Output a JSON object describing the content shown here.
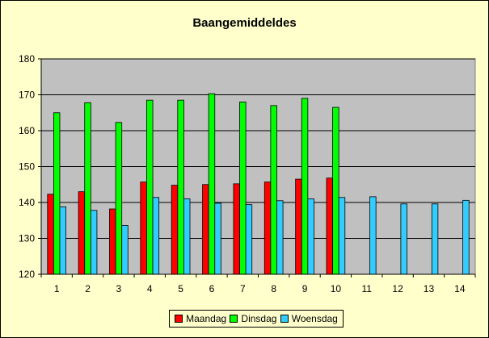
{
  "chart_data": {
    "type": "bar",
    "title": "Baangemiddeldes",
    "xlabel": "",
    "ylabel": "",
    "categories": [
      "1",
      "2",
      "3",
      "4",
      "5",
      "6",
      "7",
      "8",
      "9",
      "10",
      "11",
      "12",
      "13",
      "14"
    ],
    "ylim": [
      120,
      180
    ],
    "yticks": [
      120,
      130,
      140,
      150,
      160,
      170,
      180
    ],
    "grid": true,
    "legend_position": "bottom",
    "series": [
      {
        "name": "Maandag",
        "color": "#ff0000",
        "values": [
          142.3,
          143.0,
          138.2,
          145.7,
          144.8,
          145.0,
          145.2,
          145.7,
          146.5,
          146.8,
          null,
          null,
          null,
          null
        ]
      },
      {
        "name": "Dinsdag",
        "color": "#00ff00",
        "values": [
          165.0,
          167.8,
          162.3,
          168.5,
          168.5,
          170.3,
          168.0,
          167.0,
          169.0,
          166.5,
          null,
          null,
          null,
          null
        ]
      },
      {
        "name": "Woensdag",
        "color": "#33ccff",
        "values": [
          138.8,
          137.8,
          133.6,
          141.4,
          141.0,
          139.8,
          139.4,
          140.5,
          141.0,
          141.4,
          141.6,
          139.6,
          139.6,
          140.6
        ]
      }
    ]
  }
}
